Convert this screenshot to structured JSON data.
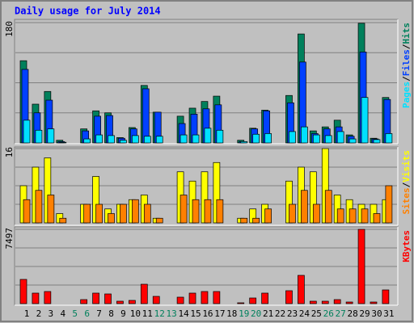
{
  "chart_data": [
    {
      "type": "bar",
      "title": "Daily usage for July 2014",
      "ylim": [
        0,
        180
      ],
      "yticks": [
        180
      ],
      "legend_separator": "/",
      "series": [
        {
          "name": "Hits",
          "color": "#00805c",
          "values": [
            123,
            58,
            77,
            4,
            0,
            21,
            48,
            45,
            8,
            23,
            86,
            46,
            0,
            40,
            52,
            62,
            70,
            0,
            4,
            22,
            49,
            0,
            71,
            163,
            18,
            24,
            34,
            12,
            179,
            7,
            68
          ]
        },
        {
          "name": "Files",
          "color": "#0040ff",
          "values": [
            110,
            45,
            64,
            2,
            0,
            18,
            40,
            41,
            7,
            21,
            81,
            46,
            0,
            29,
            43,
            51,
            57,
            0,
            2,
            21,
            48,
            0,
            60,
            121,
            14,
            21,
            24,
            10,
            136,
            6,
            65
          ]
        },
        {
          "name": "Pages",
          "color": "#00e0ff",
          "values": [
            34,
            19,
            21,
            1,
            0,
            6,
            12,
            11,
            4,
            11,
            10,
            10,
            0,
            12,
            12,
            22,
            19,
            0,
            2,
            13,
            14,
            0,
            17,
            24,
            12,
            11,
            17,
            6,
            68,
            5,
            14
          ]
        }
      ]
    },
    {
      "type": "bar",
      "ylim": [
        0,
        16
      ],
      "yticks": [
        16
      ],
      "legend_separator": "/",
      "series": [
        {
          "name": "Visits",
          "color": "#ffff00",
          "values": [
            8,
            12,
            14,
            2,
            0,
            4,
            10,
            3,
            4,
            5,
            6,
            1,
            0,
            11,
            9,
            11,
            13,
            0,
            1,
            3,
            4,
            0,
            9,
            12,
            11,
            16,
            6,
            5,
            4,
            4,
            5
          ]
        },
        {
          "name": "Sites",
          "color": "#ff8000",
          "values": [
            5,
            7,
            6,
            1,
            0,
            4,
            4,
            2,
            4,
            5,
            4,
            1,
            0,
            6,
            5,
            5,
            5,
            0,
            1,
            1,
            3,
            0,
            4,
            7,
            4,
            7,
            3,
            3,
            3,
            2,
            8
          ]
        }
      ]
    },
    {
      "type": "bar",
      "ylim": [
        0,
        7497
      ],
      "yticks": [
        7497
      ],
      "series": [
        {
          "name": "KBytes",
          "color": "#ff0000",
          "values": [
            2445,
            1060,
            1222,
            0,
            0,
            407,
            1060,
            978,
            245,
            326,
            1956,
            733,
            0,
            652,
            1060,
            1222,
            1222,
            0,
            82,
            570,
            1060,
            0,
            1304,
            2852,
            245,
            245,
            407,
            163,
            7497,
            163,
            1385
          ]
        }
      ],
      "categories": [
        "1",
        "2",
        "3",
        "4",
        "5",
        "6",
        "7",
        "8",
        "9",
        "10",
        "11",
        "12",
        "13",
        "14",
        "15",
        "16",
        "17",
        "18",
        "19",
        "20",
        "21",
        "22",
        "23",
        "24",
        "25",
        "26",
        "27",
        "28",
        "29",
        "30",
        "31"
      ],
      "category_colors": [
        "#000000",
        "#000000",
        "#000000",
        "#000000",
        "#00805c",
        "#00805c",
        "#000000",
        "#000000",
        "#000000",
        "#000000",
        "#000000",
        "#00805c",
        "#00805c",
        "#000000",
        "#000000",
        "#000000",
        "#000000",
        "#000000",
        "#00805c",
        "#00805c",
        "#000000",
        "#000000",
        "#000000",
        "#000000",
        "#000000",
        "#00805c",
        "#00805c",
        "#000000",
        "#000000",
        "#000000",
        "#000000"
      ]
    }
  ]
}
